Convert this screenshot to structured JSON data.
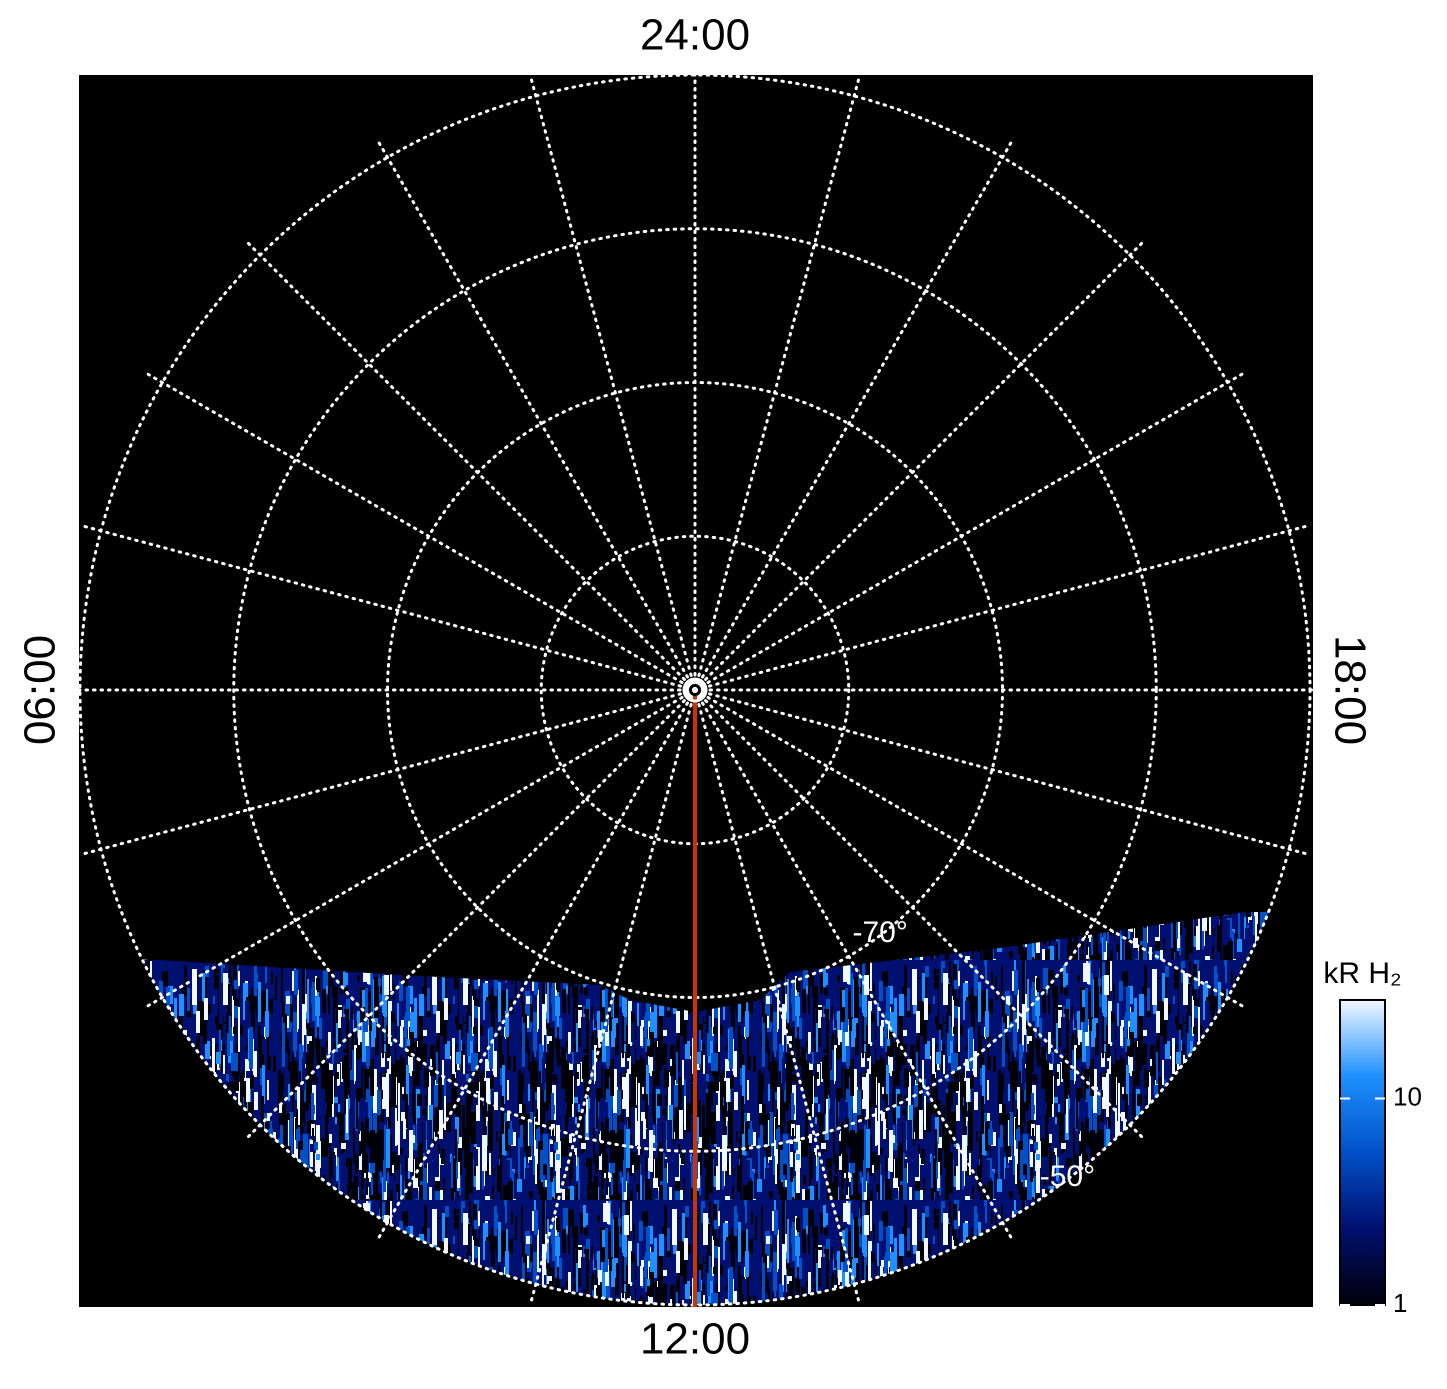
{
  "chart_data": {
    "type": "polar-image",
    "local_time_labels": [
      {
        "value": 24,
        "label": "24:00"
      },
      {
        "value": 12,
        "label": "12:00"
      },
      {
        "value": 6,
        "label": "06:00"
      },
      {
        "value": 18,
        "label": "18:00"
      }
    ],
    "rlim": [
      -90,
      -50
    ],
    "rticks": [
      -80,
      -70,
      -60,
      -50
    ],
    "ring_labels": [
      {
        "value": -70,
        "label": "-70°"
      },
      {
        "value": -50,
        "label": "-50°"
      }
    ],
    "meridian_step_hours": 1,
    "marker_local_time": 12,
    "marker_color": "#cc3300",
    "colorbar": {
      "title": "kR H₂",
      "log": true,
      "clim": [
        1,
        30
      ],
      "ticks": [
        1,
        10
      ],
      "colors": [
        "#000008",
        "#001070",
        "#0050c8",
        "#1e90ff",
        "#f2f8ff"
      ]
    }
  }
}
